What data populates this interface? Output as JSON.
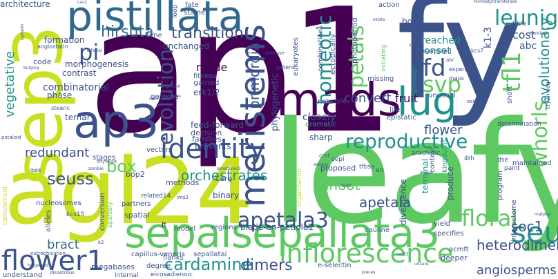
{
  "palette": {
    "dark_purple": "#440154",
    "indigo": "#3b528b",
    "teal": "#21918c",
    "green": "#5ec962",
    "lime": "#c8e020",
    "blue": "#31688e"
  },
  "words": {
    "ap1": "ap1",
    "fy": "fy",
    "leafy": "leafy",
    "agl24": "agl24",
    "sep3": "sep3",
    "pistillata": "pistillata",
    "mads": "mads",
    "ap3": "ap3",
    "identity": "identity",
    "lug": "lug",
    "meristems": "meristems",
    "sepalsepallata3": "sepalsepallata3",
    "seu": "seu",
    "flower1": "flower1",
    "inflorescence": "inflorescence",
    "apetala3": "apetala3",
    "floral": "floral",
    "evolution": "evolution",
    "reproductive": "reproductive",
    "homeotic": "homeotic",
    "petals": "petals",
    "fd": "fd",
    "svp": "svp",
    "tfl1": "tfl1",
    "whorls": "whorls",
    "leunig": "leunig",
    "hirsuta": "hirsuta",
    "transition": "transition",
    "pi": "pi",
    "seuss": "seuss",
    "box": "box",
    "cardamine": "cardamine",
    "dimers": "dimers",
    "angiosperms": "angiosperms",
    "soc1": "soc1",
    "heterodimer": "heterodimer",
    "apetala": "apetala",
    "shoot": "shoot",
    "bract": "bract",
    "vegetative": "vegetative",
    "primordia": "primordia",
    "convert": "convert",
    "fruit": "fruit",
    "flower": "flower",
    "evolutionary": "evolutionary",
    "orchestrates": "orchestrates",
    "redundant": "redundant",
    "mode": "mode",
    "cost": "cost",
    "reached": "reached",
    "onset": "onset",
    "k1_3": "k1-3",
    "abc": "abc",
    "bop1": "bop1",
    "architecture": "architecture",
    "combinatorial": "combinatorial",
    "morphogenesis": "morphogenesis",
    "contrast": "contrast",
    "unchanged": "unchanged",
    "time": "time",
    "formation": "formation",
    "code": "code",
    "phase": "phase",
    "flanks": "flanks",
    "erk1_2": "erk1/2",
    "gained": "gained",
    "fitness": "fitness",
    "phylogenetic": "phylogenetic",
    "feed_forward": "feed-forward",
    "decision": "decision",
    "families": "families",
    "prevents": "prevents",
    "ternary": "ternary",
    "stages": "stages",
    "vectors": "vectors",
    "genome": "genome",
    "fate": "fate",
    "stamen": "stamen",
    "closely": "closely",
    "sharp": "sharp",
    "dramatic": "dramatic",
    "epistatic": "epistatic",
    "life": "life",
    "proposed": "proposed",
    "produce": "produce",
    "terminal": "terminal",
    "yield": "yield",
    "divergence": "divergence",
    "context": "context",
    "kingdoms": "kingdoms",
    "bop2": "bop2",
    "carg": "carg",
    "methods": "methods",
    "binary": "binary",
    "spatial": "spatial",
    "partners": "partners",
    "ft": "ft",
    "model": "model",
    "regions": "regions",
    "blade_on_petiole1": "blade-on-petiole1",
    "cauline": "cauline",
    "specifies": "specifies",
    "megabases": "megabases",
    "degree": "degree",
    "internal": "internal",
    "eicosadienoic": "eicosadienoic",
    "understand": "understand",
    "capillus_veneris": "capillus-veneris",
    "sepallatai": "sepallatai",
    "e_selectin": "e-selectin",
    "deeper": "deeper",
    "acmft": "acmft",
    "alleles": "alleles",
    "nucleosomes": "nucleosomes",
    "kcs15": "kcs15",
    "complement": "complement",
    "conversion": "conversion",
    "sparsely": "sparsely",
    "organization": "organization",
    "program": "program",
    "interactome": "interactome",
    "maintained": "maintained",
    "determination": "determination",
    "short": "short",
    "unusual": "unusual",
    "parallel": "parallel",
    "photoperiod": "photoperiod",
    "network": "network",
    "missing": "missing",
    "ectopically": "ectopically",
    "combinations": "combinations",
    "eukaryotes": "eukaryotes",
    "action": "action",
    "resembled": "resembled",
    "initiating": "initiating",
    "loop": "loop",
    "related14": "related14",
    "tfbss": "tfbss",
    "en": "en",
    "sepi": "sepi",
    "cml": "cml",
    "4th": "4th",
    "dse": "dse",
    "paint": "paint",
    "arachidic": "arachidic",
    "angiostatin": "angiostatin",
    "stearic": "stearic",
    "kcs7": "kcs7",
    "triply": "triply",
    "expert": "expert",
    "maps": "maps",
    "cry2h_seq": "cry2h-seq",
    "overuse": "overuse",
    "patens": "patens",
    "lbd4": "lbd4",
    "petaloid": "petaloid",
    "happened": "happened",
    "eutrophication": "eutrophication",
    "disastrous": "disastrous",
    "bulging": "bulging",
    "bifacial": "bifacial",
    "racemes": "racemes",
    "fifty_eight": "fifty-eight",
    "zombie": "zombie",
    "wait": "wait",
    "malpha": "malpha",
    "k2": "k2",
    "apms": "apms",
    "oxs3": "oxs3",
    "abr": "abr",
    "sap54": "sap54",
    "identity2": "identity2",
    "formestyltransferase": "formestyltransferase",
    "cav1": "cav1",
    "camelin": "camelin",
    "exists": "exists",
    "linked": "linked",
    "ectopic": "ectopic",
    "unsure": "unsure",
    "sensitive23": "sensitive23",
    "nkk7": "nkk7",
    "apex14": "apex14",
    "rad23": "rad23",
    "lms2": "lms2",
    "pieces": "pieces"
  }
}
